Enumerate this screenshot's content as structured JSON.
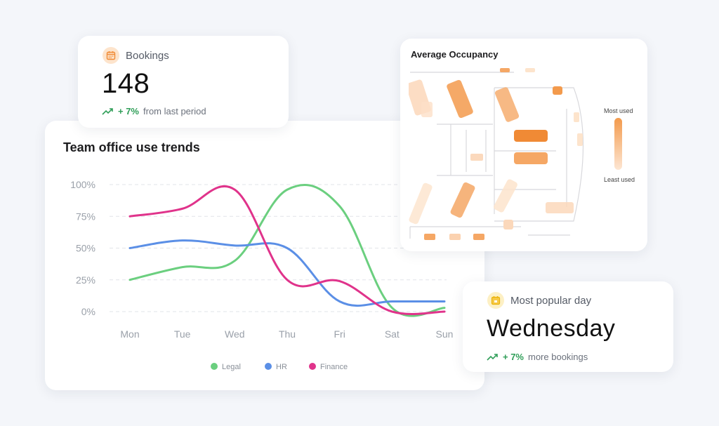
{
  "bookings": {
    "label": "Bookings",
    "value": "148",
    "delta": "+ 7%",
    "delta_suffix": "from last period",
    "icon": "calendar-icon"
  },
  "trends": {
    "title": "Team office use trends"
  },
  "occupancy": {
    "title": "Average Occupancy",
    "legend_top": "Most used",
    "legend_bottom": "Least used"
  },
  "popular_day": {
    "label": "Most popular day",
    "value": "Wednesday",
    "delta": "+ 7%",
    "delta_suffix": "more bookings",
    "icon": "calendar-icon"
  },
  "colors": {
    "legal": "#6bcf7f",
    "hr": "#5b8fe6",
    "finance": "#e0338b",
    "accent_orange": "#f39a4c",
    "positive_green": "#2f9e58"
  },
  "chart_data": {
    "type": "line",
    "title": "Team office use trends",
    "categories": [
      "Mon",
      "Tue",
      "Wed",
      "Thu",
      "Fri",
      "Sat",
      "Sun"
    ],
    "yticks": [
      "100%",
      "75%",
      "50%",
      "25%",
      "0%"
    ],
    "ylim": [
      0,
      100
    ],
    "grid": true,
    "legend_position": "bottom",
    "series": [
      {
        "name": "Legal",
        "color": "#6bcf7f",
        "values": [
          25,
          35,
          40,
          96,
          83,
          3,
          3
        ]
      },
      {
        "name": "HR",
        "color": "#5b8fe6",
        "values": [
          50,
          56,
          52,
          50,
          8,
          8,
          8
        ]
      },
      {
        "name": "Finance",
        "color": "#e0338b",
        "values": [
          75,
          81,
          96,
          25,
          24,
          0,
          0
        ]
      }
    ]
  }
}
